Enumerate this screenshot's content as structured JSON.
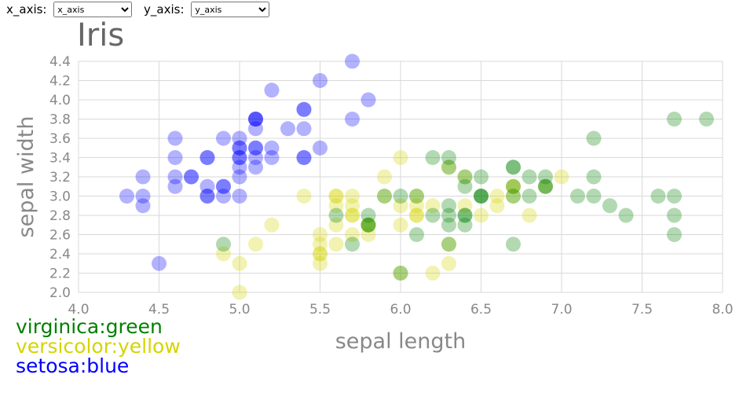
{
  "controls": {
    "x_label": "x_axis:",
    "x_value": "x_axis",
    "y_label": "y_axis:",
    "y_value": "y_axis"
  },
  "colors": {
    "virginica": "#008000",
    "versicolor": "#d4d400",
    "setosa": "#0000ff",
    "grid": "#d9d9d9",
    "text": "#888888",
    "title": "#666666"
  },
  "legend": [
    {
      "label": "virginica:green",
      "color": "#008000"
    },
    {
      "label": "versicolor:yellow",
      "color": "#d4d400"
    },
    {
      "label": "setosa:blue",
      "color": "#0000ff"
    }
  ],
  "chart_data": {
    "type": "scatter",
    "title": "Iris",
    "xlabel": "sepal length",
    "ylabel": "sepal width",
    "xlim": [
      4.0,
      8.0
    ],
    "ylim": [
      2.0,
      4.4
    ],
    "xticks": [
      "4.0",
      "4.5",
      "5.0",
      "5.5",
      "6.0",
      "6.5",
      "7.0",
      "7.5",
      "8.0"
    ],
    "yticks": [
      "2.0",
      "2.2",
      "2.4",
      "2.6",
      "2.8",
      "3.0",
      "3.2",
      "3.4",
      "3.6",
      "3.8",
      "4.0",
      "4.2",
      "4.4"
    ],
    "series": [
      {
        "name": "setosa",
        "points": [
          [
            5.1,
            3.5
          ],
          [
            4.9,
            3.0
          ],
          [
            4.7,
            3.2
          ],
          [
            4.6,
            3.1
          ],
          [
            5.0,
            3.6
          ],
          [
            5.4,
            3.9
          ],
          [
            4.6,
            3.4
          ],
          [
            5.0,
            3.4
          ],
          [
            4.4,
            2.9
          ],
          [
            4.9,
            3.1
          ],
          [
            5.4,
            3.7
          ],
          [
            4.8,
            3.4
          ],
          [
            4.8,
            3.0
          ],
          [
            4.3,
            3.0
          ],
          [
            5.8,
            4.0
          ],
          [
            5.7,
            4.4
          ],
          [
            5.4,
            3.9
          ],
          [
            5.1,
            3.5
          ],
          [
            5.7,
            3.8
          ],
          [
            5.1,
            3.8
          ],
          [
            5.4,
            3.4
          ],
          [
            5.1,
            3.7
          ],
          [
            4.6,
            3.6
          ],
          [
            5.1,
            3.3
          ],
          [
            4.8,
            3.4
          ],
          [
            5.0,
            3.0
          ],
          [
            5.0,
            3.4
          ],
          [
            5.2,
            3.5
          ],
          [
            5.2,
            3.4
          ],
          [
            4.7,
            3.2
          ],
          [
            4.8,
            3.1
          ],
          [
            5.4,
            3.4
          ],
          [
            5.2,
            4.1
          ],
          [
            5.5,
            4.2
          ],
          [
            4.9,
            3.1
          ],
          [
            5.0,
            3.2
          ],
          [
            5.5,
            3.5
          ],
          [
            4.9,
            3.6
          ],
          [
            4.4,
            3.0
          ],
          [
            5.1,
            3.4
          ],
          [
            5.0,
            3.5
          ],
          [
            4.5,
            2.3
          ],
          [
            4.4,
            3.2
          ],
          [
            5.0,
            3.5
          ],
          [
            5.1,
            3.8
          ],
          [
            4.8,
            3.0
          ],
          [
            5.1,
            3.8
          ],
          [
            4.6,
            3.2
          ],
          [
            5.3,
            3.7
          ],
          [
            5.0,
            3.3
          ]
        ]
      },
      {
        "name": "versicolor",
        "points": [
          [
            7.0,
            3.2
          ],
          [
            6.4,
            3.2
          ],
          [
            6.9,
            3.1
          ],
          [
            5.5,
            2.3
          ],
          [
            6.5,
            2.8
          ],
          [
            5.7,
            2.8
          ],
          [
            6.3,
            3.3
          ],
          [
            4.9,
            2.4
          ],
          [
            6.6,
            2.9
          ],
          [
            5.2,
            2.7
          ],
          [
            5.0,
            2.0
          ],
          [
            5.9,
            3.0
          ],
          [
            6.0,
            2.2
          ],
          [
            6.1,
            2.9
          ],
          [
            5.6,
            2.9
          ],
          [
            6.7,
            3.1
          ],
          [
            5.6,
            3.0
          ],
          [
            5.8,
            2.7
          ],
          [
            6.2,
            2.2
          ],
          [
            5.6,
            2.5
          ],
          [
            5.9,
            3.2
          ],
          [
            6.1,
            2.8
          ],
          [
            6.3,
            2.5
          ],
          [
            6.1,
            2.8
          ],
          [
            6.4,
            2.9
          ],
          [
            6.6,
            3.0
          ],
          [
            6.8,
            2.8
          ],
          [
            6.7,
            3.0
          ],
          [
            6.0,
            2.9
          ],
          [
            5.7,
            2.6
          ],
          [
            5.5,
            2.4
          ],
          [
            5.5,
            2.4
          ],
          [
            5.8,
            2.7
          ],
          [
            6.0,
            2.7
          ],
          [
            5.4,
            3.0
          ],
          [
            6.0,
            3.4
          ],
          [
            6.7,
            3.1
          ],
          [
            6.3,
            2.3
          ],
          [
            5.6,
            3.0
          ],
          [
            5.5,
            2.5
          ],
          [
            5.5,
            2.6
          ],
          [
            6.1,
            3.0
          ],
          [
            5.8,
            2.6
          ],
          [
            5.0,
            2.3
          ],
          [
            5.6,
            2.7
          ],
          [
            5.7,
            3.0
          ],
          [
            5.7,
            2.9
          ],
          [
            6.2,
            2.9
          ],
          [
            5.1,
            2.5
          ],
          [
            5.7,
            2.8
          ]
        ]
      },
      {
        "name": "virginica",
        "points": [
          [
            6.3,
            3.3
          ],
          [
            5.8,
            2.7
          ],
          [
            7.1,
            3.0
          ],
          [
            6.3,
            2.9
          ],
          [
            6.5,
            3.0
          ],
          [
            7.6,
            3.0
          ],
          [
            4.9,
            2.5
          ],
          [
            7.3,
            2.9
          ],
          [
            6.7,
            2.5
          ],
          [
            7.2,
            3.6
          ],
          [
            6.5,
            3.2
          ],
          [
            6.4,
            2.7
          ],
          [
            6.8,
            3.0
          ],
          [
            5.7,
            2.5
          ],
          [
            5.8,
            2.8
          ],
          [
            6.4,
            3.2
          ],
          [
            6.5,
            3.0
          ],
          [
            7.7,
            3.8
          ],
          [
            7.7,
            2.6
          ],
          [
            6.0,
            2.2
          ],
          [
            6.9,
            3.2
          ],
          [
            5.6,
            2.8
          ],
          [
            7.7,
            2.8
          ],
          [
            6.3,
            2.7
          ],
          [
            6.7,
            3.3
          ],
          [
            7.2,
            3.2
          ],
          [
            6.2,
            2.8
          ],
          [
            6.1,
            3.0
          ],
          [
            6.4,
            2.8
          ],
          [
            7.2,
            3.0
          ],
          [
            7.4,
            2.8
          ],
          [
            7.9,
            3.8
          ],
          [
            6.4,
            2.8
          ],
          [
            6.3,
            2.8
          ],
          [
            6.1,
            2.6
          ],
          [
            7.7,
            3.0
          ],
          [
            6.3,
            3.4
          ],
          [
            6.4,
            3.1
          ],
          [
            6.0,
            3.0
          ],
          [
            6.9,
            3.1
          ],
          [
            6.7,
            3.1
          ],
          [
            6.9,
            3.1
          ],
          [
            5.8,
            2.7
          ],
          [
            6.8,
            3.2
          ],
          [
            6.7,
            3.3
          ],
          [
            6.7,
            3.0
          ],
          [
            6.3,
            2.5
          ],
          [
            6.5,
            3.0
          ],
          [
            6.2,
            3.4
          ],
          [
            5.9,
            3.0
          ]
        ]
      }
    ]
  }
}
